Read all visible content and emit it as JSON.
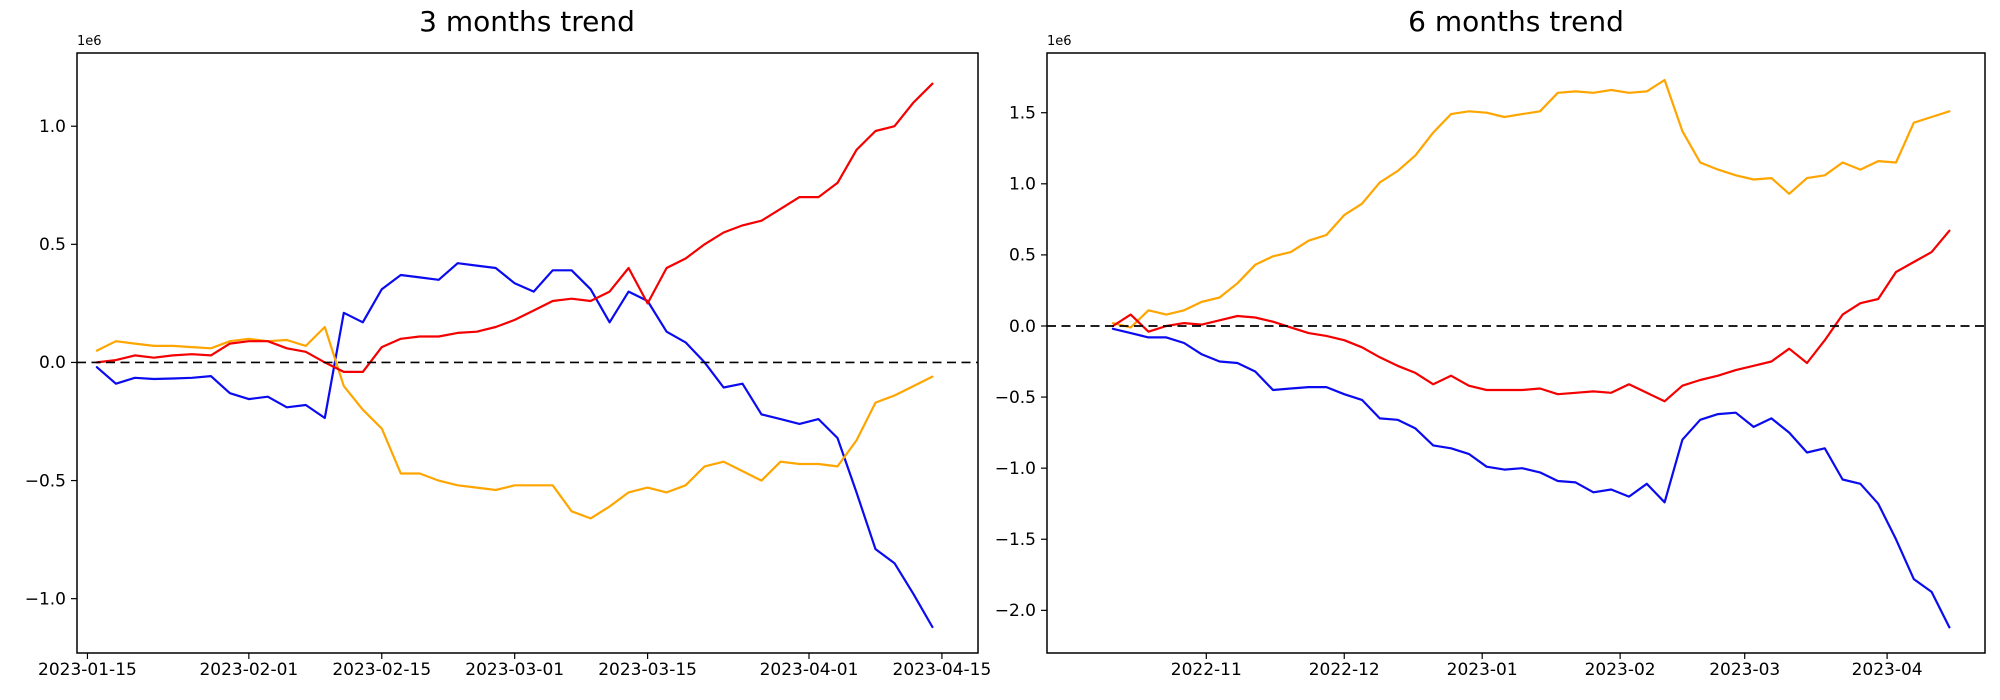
{
  "figure": {
    "background_color": "#ffffff",
    "text_color": "#000000",
    "zero_line_color": "#000000"
  },
  "chart_data": [
    {
      "type": "line",
      "title": "3 months trend",
      "offset_label": "1e6",
      "ylabel": "",
      "xlabel": "",
      "grid": false,
      "legend": "none",
      "zero_line_dashed": true,
      "x_ticks": [
        {
          "label": "2023-01-15",
          "day": 0
        },
        {
          "label": "2023-02-01",
          "day": 17
        },
        {
          "label": "2023-02-15",
          "day": 31
        },
        {
          "label": "2023-03-01",
          "day": 45
        },
        {
          "label": "2023-03-15",
          "day": 59
        },
        {
          "label": "2023-04-01",
          "day": 76
        },
        {
          "label": "2023-04-15",
          "day": 90
        }
      ],
      "x_domain_days": [
        -1.1,
        93.8
      ],
      "data_day_span": [
        1,
        89
      ],
      "y_ticks": [
        1.0,
        0.5,
        0.0,
        -0.5,
        -1.0
      ],
      "y_domain": [
        -1.23,
        1.31
      ],
      "y_unit": "1e6",
      "series": [
        {
          "name": "blue",
          "color": "#0b0bf0",
          "values": [
            -0.02,
            -0.09,
            -0.065,
            -0.07,
            -0.068,
            -0.065,
            -0.058,
            -0.13,
            -0.155,
            -0.145,
            -0.19,
            -0.18,
            -0.235,
            0.21,
            0.17,
            0.31,
            0.37,
            0.36,
            0.35,
            0.42,
            0.41,
            0.4,
            0.335,
            0.3,
            0.39,
            0.39,
            0.31,
            0.17,
            0.3,
            0.26,
            0.13,
            0.085,
            0.0,
            -0.106,
            -0.09,
            -0.22,
            -0.24,
            -0.26,
            -0.24,
            -0.32,
            -0.55,
            -0.79,
            -0.85,
            -0.98,
            -1.12
          ]
        },
        {
          "name": "orange",
          "color": "#ffa500",
          "values": [
            0.05,
            0.09,
            0.08,
            0.07,
            0.07,
            0.065,
            0.06,
            0.09,
            0.1,
            0.09,
            0.095,
            0.07,
            0.15,
            -0.1,
            -0.2,
            -0.28,
            -0.47,
            -0.47,
            -0.5,
            -0.52,
            -0.53,
            -0.54,
            -0.52,
            -0.52,
            -0.52,
            -0.63,
            -0.66,
            -0.61,
            -0.55,
            -0.53,
            -0.55,
            -0.52,
            -0.44,
            -0.42,
            -0.46,
            -0.5,
            -0.42,
            -0.43,
            -0.43,
            -0.44,
            -0.33,
            -0.17,
            -0.14,
            -0.1,
            -0.06
          ]
        },
        {
          "name": "red",
          "color": "#f40000",
          "values": [
            0.0,
            0.01,
            0.03,
            0.02,
            0.03,
            0.035,
            0.03,
            0.08,
            0.09,
            0.09,
            0.06,
            0.045,
            0.0,
            -0.04,
            -0.04,
            0.065,
            0.1,
            0.11,
            0.11,
            0.125,
            0.13,
            0.15,
            0.18,
            0.22,
            0.26,
            0.27,
            0.26,
            0.3,
            0.4,
            0.25,
            0.4,
            0.44,
            0.5,
            0.55,
            0.58,
            0.6,
            0.65,
            0.7,
            0.7,
            0.76,
            0.9,
            0.98,
            1.0,
            1.1,
            1.18
          ]
        }
      ]
    },
    {
      "type": "line",
      "title": "6 months trend",
      "offset_label": "1e6",
      "ylabel": "",
      "xlabel": "",
      "grid": false,
      "legend": "none",
      "zero_line_dashed": true,
      "x_ticks": [
        {
          "label": "2022-11",
          "day": 21
        },
        {
          "label": "2022-12",
          "day": 52
        },
        {
          "label": "2023-01",
          "day": 83
        },
        {
          "label": "2023-02",
          "day": 114
        },
        {
          "label": "2023-03",
          "day": 142
        },
        {
          "label": "2023-04",
          "day": 174
        }
      ],
      "x_domain_days": [
        -14.8,
        196
      ],
      "data_day_span": [
        0,
        188
      ],
      "y_ticks": [
        1.5,
        1.0,
        0.5,
        0.0,
        -0.5,
        -1.0,
        -1.5,
        -2.0
      ],
      "y_domain": [
        -2.3,
        1.92
      ],
      "y_unit": "1e6",
      "series": [
        {
          "name": "blue",
          "color": "#0b0bf0",
          "values": [
            -0.02,
            -0.05,
            -0.08,
            -0.08,
            -0.12,
            -0.2,
            -0.25,
            -0.26,
            -0.32,
            -0.45,
            -0.44,
            -0.43,
            -0.43,
            -0.48,
            -0.52,
            -0.65,
            -0.66,
            -0.72,
            -0.84,
            -0.86,
            -0.9,
            -0.99,
            -1.01,
            -1.0,
            -1.03,
            -1.09,
            -1.1,
            -1.17,
            -1.15,
            -1.2,
            -1.11,
            -1.24,
            -0.8,
            -0.66,
            -0.62,
            -0.61,
            -0.71,
            -0.65,
            -0.75,
            -0.89,
            -0.86,
            -1.08,
            -1.11,
            -1.25,
            -1.5,
            -1.78,
            -1.87,
            -2.12
          ]
        },
        {
          "name": "orange",
          "color": "#ffa500",
          "values": [
            0.02,
            -0.01,
            0.11,
            0.08,
            0.11,
            0.17,
            0.2,
            0.3,
            0.43,
            0.49,
            0.52,
            0.6,
            0.64,
            0.78,
            0.86,
            1.01,
            1.09,
            1.2,
            1.36,
            1.49,
            1.51,
            1.5,
            1.47,
            1.49,
            1.51,
            1.64,
            1.65,
            1.64,
            1.66,
            1.64,
            1.65,
            1.73,
            1.37,
            1.15,
            1.1,
            1.06,
            1.03,
            1.04,
            0.93,
            1.04,
            1.06,
            1.15,
            1.1,
            1.16,
            1.15,
            1.43,
            1.47,
            1.51
          ]
        },
        {
          "name": "red",
          "color": "#f40000",
          "values": [
            0.0,
            0.08,
            -0.04,
            0.0,
            0.02,
            0.01,
            0.04,
            0.07,
            0.06,
            0.03,
            -0.01,
            -0.05,
            -0.07,
            -0.1,
            -0.15,
            -0.22,
            -0.28,
            -0.33,
            -0.41,
            -0.35,
            -0.42,
            -0.45,
            -0.45,
            -0.45,
            -0.44,
            -0.48,
            -0.47,
            -0.46,
            -0.47,
            -0.41,
            -0.47,
            -0.53,
            -0.42,
            -0.38,
            -0.35,
            -0.31,
            -0.28,
            -0.25,
            -0.16,
            -0.26,
            -0.1,
            0.08,
            0.16,
            0.19,
            0.38,
            0.45,
            0.52,
            0.67
          ]
        }
      ]
    }
  ]
}
